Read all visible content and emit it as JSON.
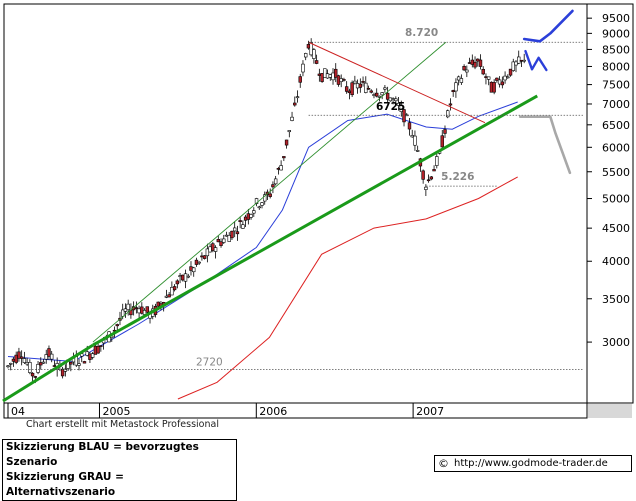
{
  "chart_data": {
    "type": "candlestick",
    "y_scale": "log",
    "ylim": [
      2450,
      9850
    ],
    "y_ticks": [
      9500,
      9000,
      8500,
      8000,
      7500,
      7000,
      6500,
      6000,
      5500,
      5000,
      4500,
      4000,
      3500,
      3000
    ],
    "x_ticks": [
      {
        "label": "04",
        "t": 0.0
      },
      {
        "label": "2005",
        "t": 7.0
      },
      {
        "label": "2006",
        "t": 19.0
      },
      {
        "label": "2007",
        "t": 31.0
      }
    ],
    "price_path": [
      [
        0,
        2750
      ],
      [
        1,
        2900
      ],
      [
        2,
        2650
      ],
      [
        3,
        2900
      ],
      [
        4,
        2700
      ],
      [
        5,
        2800
      ],
      [
        6,
        2850
      ],
      [
        7,
        2950
      ],
      [
        8,
        3100
      ],
      [
        9,
        3350
      ],
      [
        10,
        3400
      ],
      [
        11,
        3300
      ],
      [
        12,
        3500
      ],
      [
        13,
        3700
      ],
      [
        14,
        3850
      ],
      [
        15,
        4050
      ],
      [
        16,
        4250
      ],
      [
        17,
        4400
      ],
      [
        18,
        4600
      ],
      [
        19,
        4900
      ],
      [
        20,
        5050
      ],
      [
        21,
        5700
      ],
      [
        22,
        6950
      ],
      [
        23,
        8720
      ],
      [
        24,
        7750
      ],
      [
        25,
        7800
      ],
      [
        26,
        7350
      ],
      [
        27,
        7500
      ],
      [
        28,
        7350
      ],
      [
        29,
        7250
      ],
      [
        30,
        6900
      ],
      [
        31,
        6300
      ],
      [
        32,
        5226
      ],
      [
        33,
        5800
      ],
      [
        34,
        7200
      ],
      [
        35,
        7950
      ],
      [
        36,
        8150
      ],
      [
        37,
        7400
      ],
      [
        38,
        7700
      ],
      [
        39,
        8100
      ]
    ],
    "ma_blue": [
      [
        0,
        2850
      ],
      [
        5,
        2800
      ],
      [
        10,
        3200
      ],
      [
        15,
        3700
      ],
      [
        19,
        4200
      ],
      [
        21,
        4800
      ],
      [
        23,
        6000
      ],
      [
        26,
        6600
      ],
      [
        29,
        6750
      ],
      [
        32,
        6450
      ],
      [
        34,
        6400
      ],
      [
        36,
        6700
      ],
      [
        39,
        7050
      ]
    ],
    "ma_red": [
      [
        13,
        2450
      ],
      [
        16,
        2600
      ],
      [
        20,
        3050
      ],
      [
        24,
        4100
      ],
      [
        28,
        4500
      ],
      [
        32,
        4650
      ],
      [
        36,
        5000
      ],
      [
        39,
        5400
      ]
    ],
    "levels": [
      {
        "label": "8.720",
        "value": 8720,
        "t_from": 23.0,
        "t_to": 44.0
      },
      {
        "label": "6725",
        "value": 6725,
        "t_from": 23.0,
        "t_to": 44.0
      },
      {
        "label": "5.226",
        "value": 5226,
        "t_from": 32.0,
        "t_to": 37.5
      },
      {
        "label": "2720",
        "value": 2720,
        "t_from": 0.0,
        "t_to": 44.0
      }
    ],
    "support_trendline": {
      "color": "#1a9a1a",
      "p1": [
        6.5,
        3000
      ],
      "p2": [
        40.5,
        7280
      ]
    },
    "thin_green_line": {
      "color": "#2f8f2f",
      "p1": [
        6.5,
        3000
      ],
      "p2": [
        33.5,
        8720
      ]
    },
    "red_downtrend": {
      "color": "#cc2222",
      "p1": [
        23.0,
        8720
      ],
      "p2": [
        36.5,
        6550
      ]
    },
    "scenario_blue": [
      [
        39.5,
        8820
      ],
      [
        40.7,
        8750
      ],
      [
        41.5,
        9000
      ],
      [
        43.2,
        9750
      ]
    ],
    "scenario_blue_zigzag": [
      [
        39.6,
        8450
      ],
      [
        40.1,
        7920
      ],
      [
        40.6,
        8250
      ],
      [
        41.2,
        7900
      ]
    ],
    "scenario_gray": [
      [
        39.2,
        6690
      ],
      [
        41.5,
        6690
      ],
      [
        41.9,
        6300
      ],
      [
        43.0,
        5480
      ]
    ],
    "colors": {
      "up": "#ffffff",
      "down": "#b2222a",
      "blue": "#2b3fd9",
      "red": "#dd2222",
      "gray": "#a8a8a8"
    }
  },
  "made_with": "Chart erstellt mit Metastock Professional",
  "legend": {
    "blue_line": "Skizzierung BLAU = bevorzugtes Szenario",
    "gray_line": "Skizzierung GRAU = Alternativszenario"
  },
  "credit": {
    "icon": "©",
    "url": "http://www.godmode-trader.de"
  }
}
